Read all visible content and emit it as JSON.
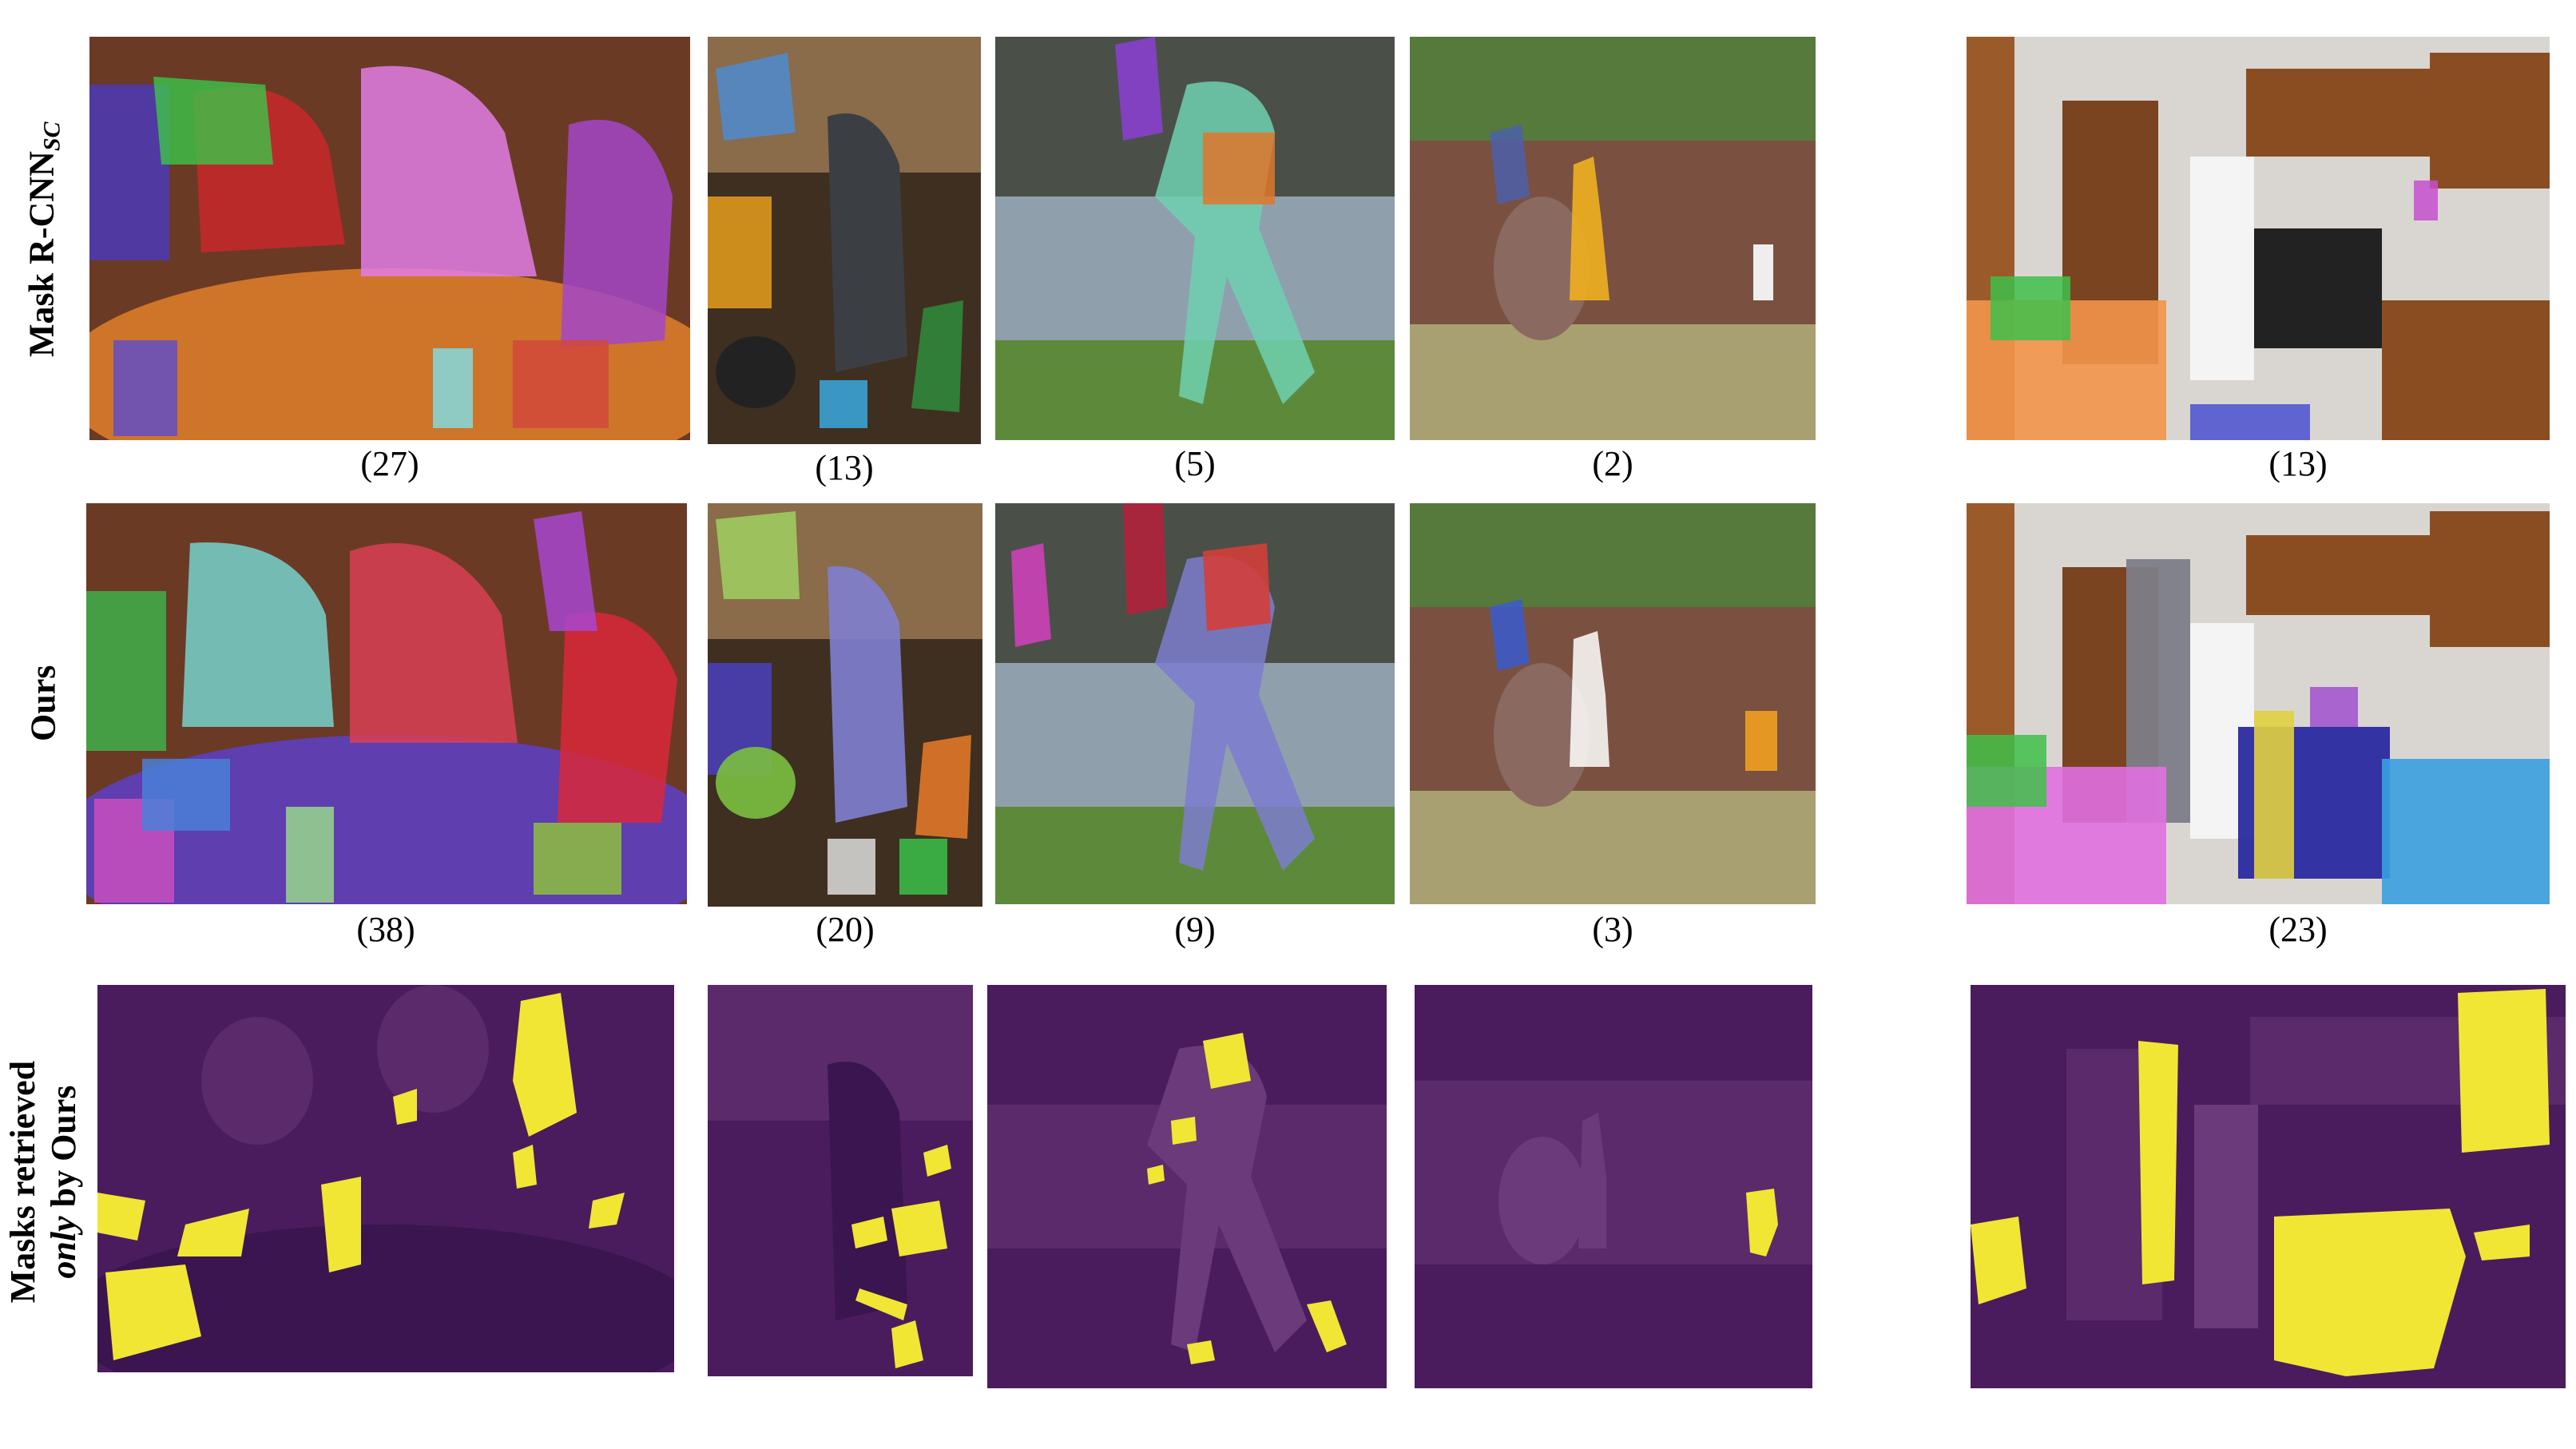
{
  "rows": [
    {
      "label_main": "Mask R-CNN",
      "label_sub": "SC",
      "counts": [
        "(27)",
        "(13)",
        "(5)",
        "(2)",
        "(13)"
      ]
    },
    {
      "label_main": "Ours",
      "label_sub": "",
      "counts": [
        "(38)",
        "(20)",
        "(9)",
        "(3)",
        "(23)"
      ]
    },
    {
      "label_line1": "Masks retrieved",
      "label_line2_em": "only",
      "label_line2_rest": " by Ours"
    }
  ],
  "scenes": [
    "dinner-table-scene",
    "kitchen-person-dog-scene",
    "baseball-batter-scene",
    "giraffe-zoo-scene",
    "kitchen-interior-scene"
  ],
  "colors": {
    "mask_yellow": "#f1e634",
    "dim_purple": "#4a1c5e"
  }
}
